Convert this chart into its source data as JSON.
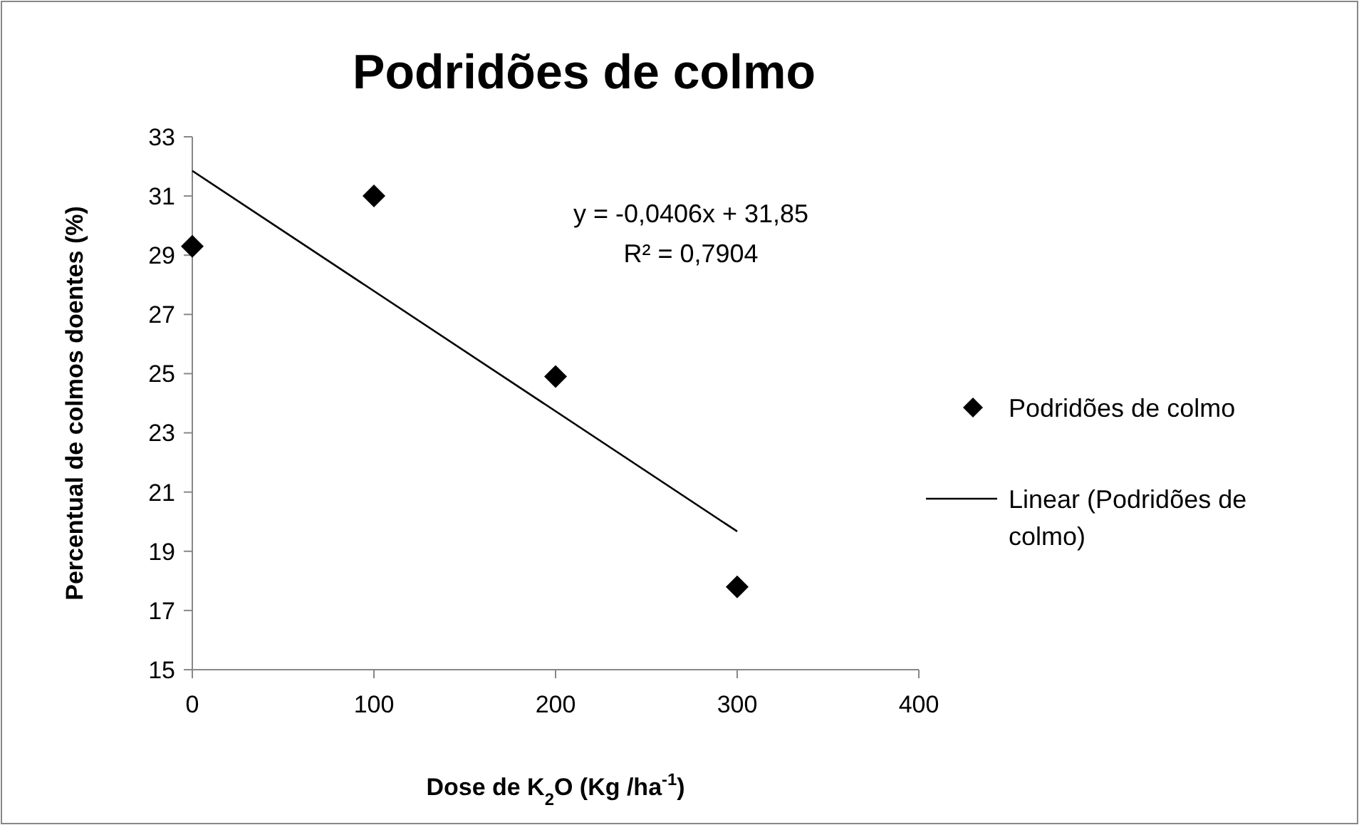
{
  "chart_data": {
    "type": "scatter",
    "title": "Podridões de colmo",
    "xlabel": "Dose de K$_{2}$O (Kg /ha$^{-1}$)",
    "ylabel": "Percentual de colmos doentes (%)",
    "xlim": [
      0,
      400
    ],
    "xticks": [
      0,
      100,
      200,
      300,
      400
    ],
    "ylim": [
      15,
      33
    ],
    "yticks": [
      15,
      17,
      19,
      21,
      23,
      25,
      27,
      29,
      31,
      33
    ],
    "series": [
      {
        "name": "Podridões de colmo",
        "color": "#000000",
        "marker": "diamond",
        "x": [
          0,
          100,
          200,
          300
        ],
        "values": [
          29.3,
          31.0,
          24.9,
          17.8
        ]
      },
      {
        "name": "Linear (Podridões de colmo)",
        "type": "line",
        "color": "#000000",
        "line_style": "solid",
        "x": [
          0,
          300
        ],
        "values": [
          31.85,
          19.67
        ]
      }
    ],
    "annotations": [
      "y = -0,0406x + 31,85",
      "R² = 0,7904"
    ],
    "legend": "right",
    "grid": false
  }
}
